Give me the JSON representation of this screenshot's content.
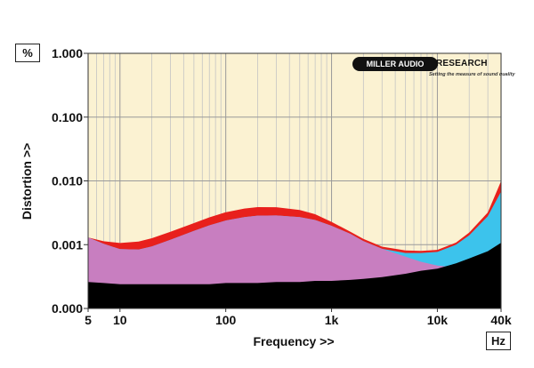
{
  "chart_data": {
    "type": "area",
    "xlabel": "Frequency >>",
    "ylabel": "Distortion >>",
    "x_unit": "Hz",
    "y_unit": "%",
    "x_scale": "log",
    "y_scale": "log",
    "xlim": [
      5,
      40000
    ],
    "y_ticks": [
      {
        "value": 1.0,
        "label": "1.000"
      },
      {
        "value": 0.1,
        "label": "0.100"
      },
      {
        "value": 0.01,
        "label": "0.010"
      },
      {
        "value": 0.001,
        "label": "0.001"
      },
      {
        "value": 0.0001,
        "label": "0.000"
      }
    ],
    "x_ticks": [
      {
        "value": 5,
        "label": "5"
      },
      {
        "value": 10,
        "label": "10"
      },
      {
        "value": 100,
        "label": "100"
      },
      {
        "value": 1000,
        "label": "1k"
      },
      {
        "value": 10000,
        "label": "10k"
      },
      {
        "value": 40000,
        "label": "40k"
      }
    ],
    "grid": true,
    "x": [
      5,
      7,
      10,
      15,
      20,
      30,
      50,
      70,
      100,
      150,
      200,
      300,
      500,
      700,
      1000,
      1500,
      2000,
      3000,
      5000,
      7000,
      10000,
      15000,
      20000,
      30000,
      40000
    ],
    "series": [
      {
        "color": "#e8201c",
        "values": [
          0.0013,
          0.00113,
          0.00106,
          0.00112,
          0.00126,
          0.00159,
          0.00218,
          0.00268,
          0.00322,
          0.00369,
          0.00388,
          0.00387,
          0.0035,
          0.003,
          0.00228,
          0.0016,
          0.00123,
          0.00093,
          0.00081,
          0.0008,
          0.00083,
          0.00108,
          0.00155,
          0.0032,
          0.0099
        ]
      },
      {
        "color": "#3cc3ec",
        "values": [
          0.0013,
          0.00103,
          0.00085,
          0.00084,
          0.00094,
          0.00119,
          0.00164,
          0.00201,
          0.00239,
          0.0027,
          0.00285,
          0.00287,
          0.0027,
          0.00244,
          0.00198,
          0.00148,
          0.00114,
          0.00086,
          0.00074,
          0.00074,
          0.00077,
          0.001,
          0.0014,
          0.0028,
          0.0068
        ]
      },
      {
        "color": "#c87ec0",
        "values": [
          0.0013,
          0.00103,
          0.00085,
          0.00084,
          0.00094,
          0.00119,
          0.00164,
          0.00201,
          0.00239,
          0.0027,
          0.00285,
          0.00287,
          0.0027,
          0.00244,
          0.00198,
          0.00148,
          0.00114,
          0.00086,
          0.00065,
          0.00054,
          0.00047,
          0.00044,
          0.00045,
          0.00046,
          0.00047
        ]
      },
      {
        "color": "#000000",
        "values": [
          0.00026,
          0.00025,
          0.00024,
          0.00024,
          0.00024,
          0.00024,
          0.00024,
          0.00024,
          0.00025,
          0.00025,
          0.00025,
          0.00026,
          0.00026,
          0.00027,
          0.00027,
          0.00028,
          0.00029,
          0.00031,
          0.00035,
          0.00039,
          0.00042,
          0.00051,
          0.00061,
          0.00079,
          0.00107
        ]
      }
    ],
    "plot_background": "#fbf2d2",
    "brand": {
      "name_left": "MILLER AUDIO",
      "name_right": "RESEARCH",
      "tagline": "Setting the measure of sound quality"
    }
  }
}
